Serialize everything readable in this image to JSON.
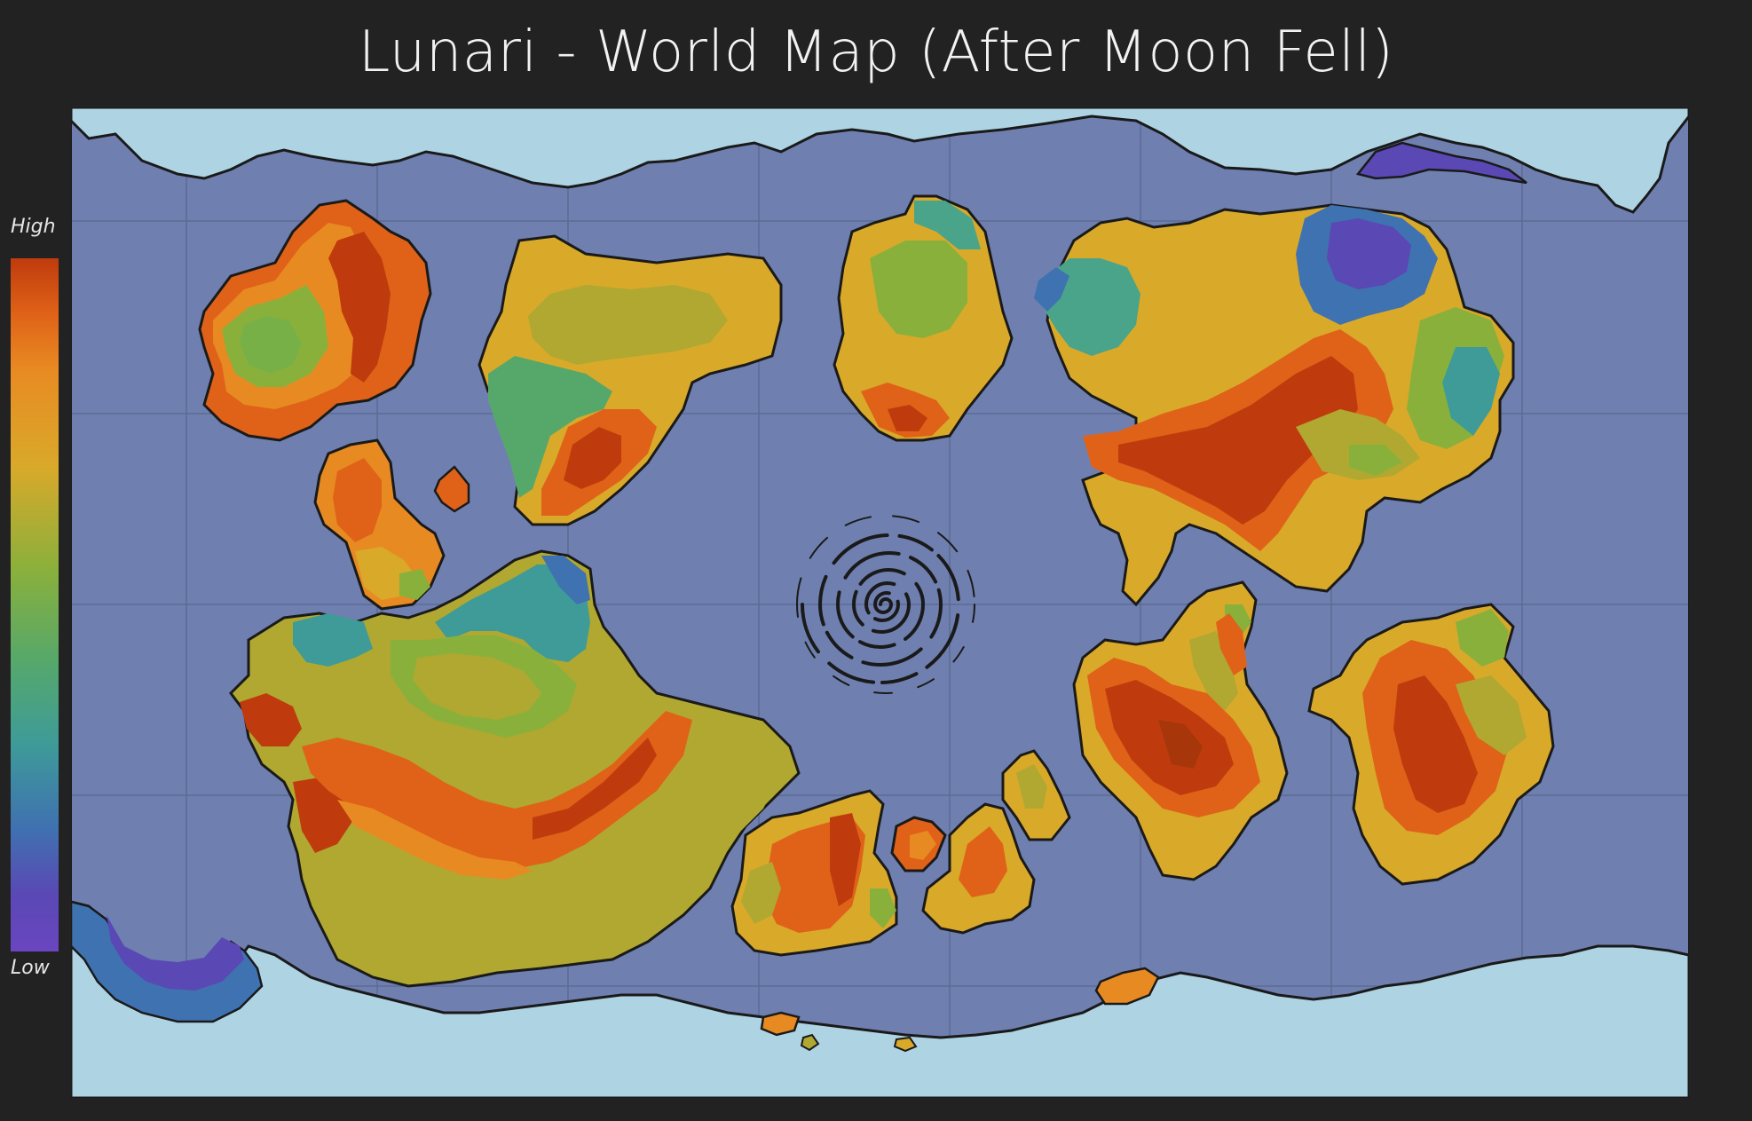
{
  "title": "Lunari - World Map (After Moon Fell)",
  "legend": {
    "high_label": "High",
    "low_label": "Low",
    "gradient_colors": [
      "#bf3b0d",
      "#df6218",
      "#e88a22",
      "#d9a92a",
      "#8ab03c",
      "#56a86a",
      "#3e9b98",
      "#3f72b0",
      "#5a48b5"
    ]
  },
  "colors": {
    "background": "#222222",
    "ocean": "#6f80b0",
    "polar_ice": "#aed4e4",
    "grid": "#5c6a94",
    "coastline": "#1a1a1a"
  },
  "map_features": {
    "vortex": "spiral-vortex-icon",
    "grid": true
  }
}
